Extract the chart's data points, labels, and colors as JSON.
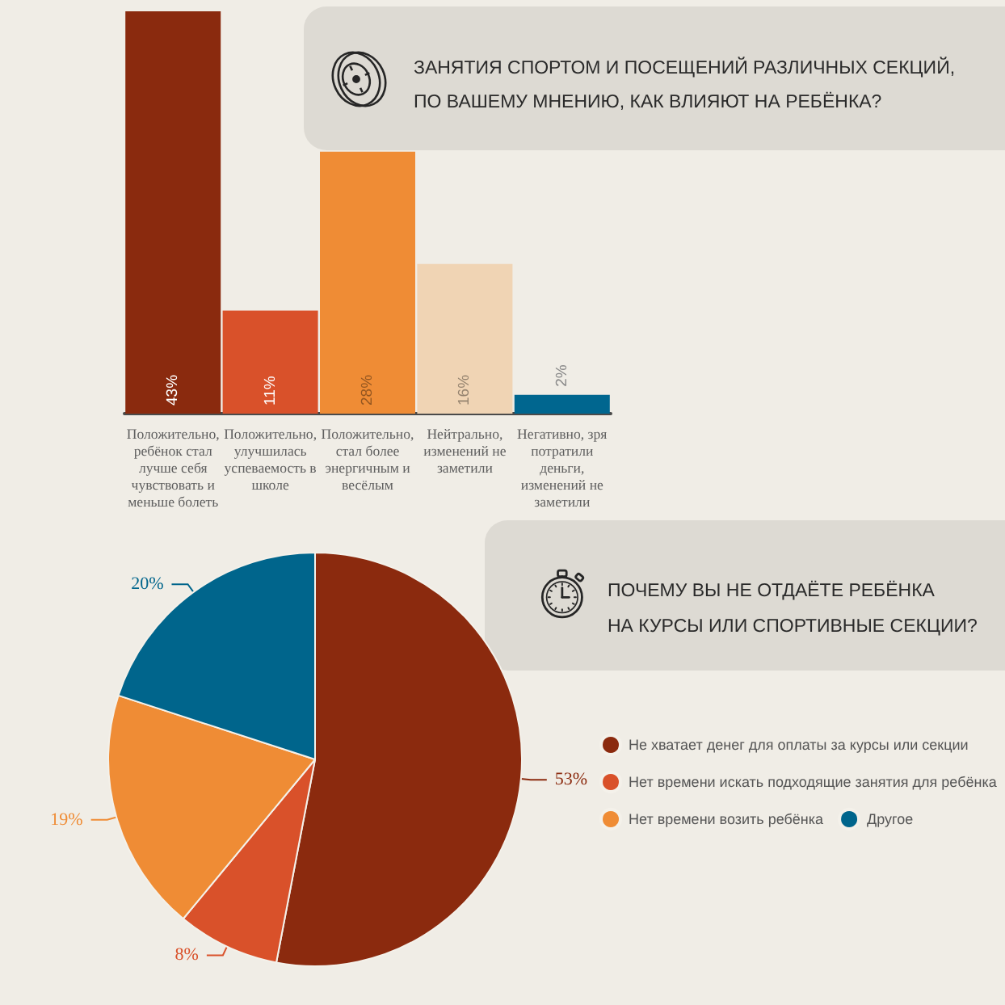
{
  "chart_data": [
    {
      "type": "bar",
      "title": "ЗАНЯТИЯ СПОРТОМ И ПОСЕЩЕНИЙ РАЗЛИЧНЫХ СЕКЦИЙ,\nПО ВАШЕМУ МНЕНИЮ, КАК ВЛИЯЮТ НА РЕБЁНКА?",
      "categories": [
        "Положительно, ребёнок стал лучше себя чувствовать и меньше болеть",
        "Положительно, улучшилась успеваемость в школе",
        "Положительно, стал более энергичным и весёлым",
        "Нейтрально, изменений не заметили",
        "Негативно, зря потратили деньги, изменений не заметили"
      ],
      "values": [
        43,
        11,
        28,
        16,
        2
      ],
      "colors": [
        "#8a2a0e",
        "#d9512a",
        "#ef8c35",
        "#f0d4b4",
        "#00668f"
      ],
      "value_labels": [
        "43%",
        "11%",
        "28%",
        "16%",
        "2%"
      ]
    },
    {
      "type": "pie",
      "title": "ПОЧЕМУ ВЫ НЕ ОТДАЁТЕ РЕБЁНКА\nНА КУРСЫ ИЛИ СПОРТИВНЫЕ СЕКЦИИ?",
      "categories": [
        "Не хватает денег для оплаты за курсы или секции",
        "Нет времени искать подходящие занятия для ребёнка",
        "Нет времени возить ребёнка",
        "Другое"
      ],
      "values": [
        53,
        8,
        19,
        20
      ],
      "colors": [
        "#8b2a0e",
        "#d9512a",
        "#ef8c35",
        "#00658c"
      ],
      "value_labels": [
        "53%",
        "8%",
        "19%",
        "20%"
      ],
      "legend": "right"
    }
  ]
}
